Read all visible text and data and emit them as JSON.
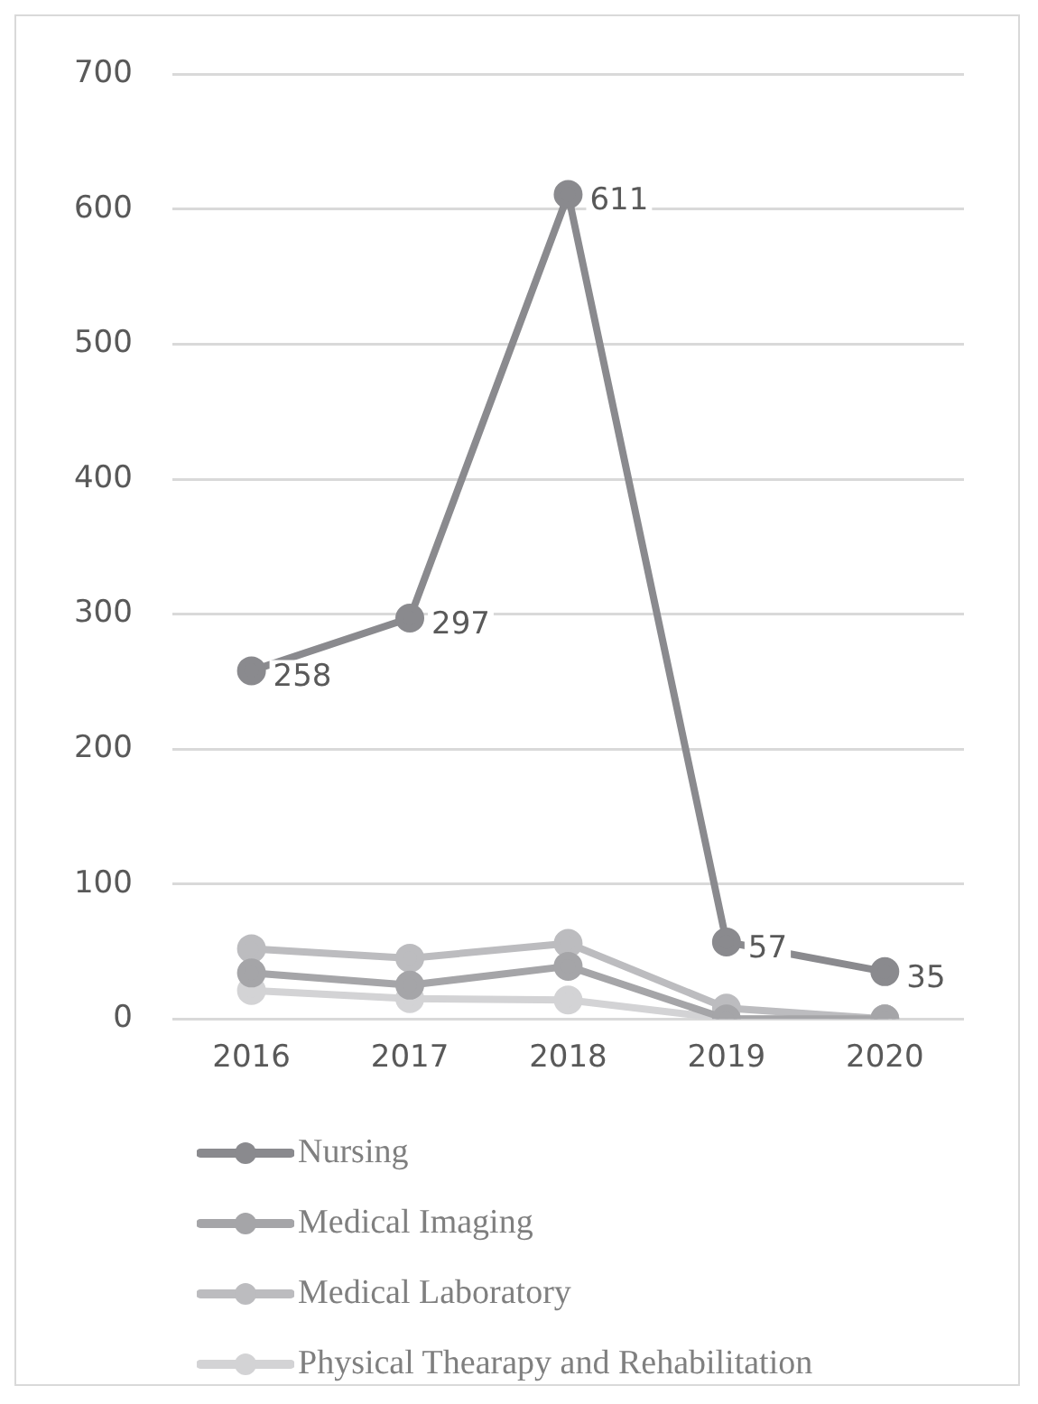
{
  "chart_data": {
    "type": "line",
    "categories": [
      "2016",
      "2017",
      "2018",
      "2019",
      "2020"
    ],
    "series": [
      {
        "name": "Nursing",
        "color": "#8a8a8e",
        "values": [
          258,
          297,
          611,
          57,
          35
        ],
        "value_labels": [
          "258",
          "297",
          "611",
          "57",
          "35"
        ]
      },
      {
        "name": "Medical Imaging",
        "color": "#a5a5a8",
        "values": [
          34,
          25,
          39,
          0,
          0
        ]
      },
      {
        "name": "Medical Laboratory",
        "color": "#bcbcbf",
        "values": [
          52,
          45,
          56,
          8,
          0
        ]
      },
      {
        "name": "Physical Thearapy and Rehabilitation",
        "color": "#d3d3d5",
        "values": [
          21,
          15,
          14,
          0,
          0
        ]
      }
    ],
    "ylim": [
      0,
      700
    ],
    "yticks": [
      0,
      100,
      200,
      300,
      400,
      500,
      600,
      700
    ],
    "grid": "y",
    "legend": "bottom",
    "marker": "circle",
    "line_style": "solid"
  }
}
